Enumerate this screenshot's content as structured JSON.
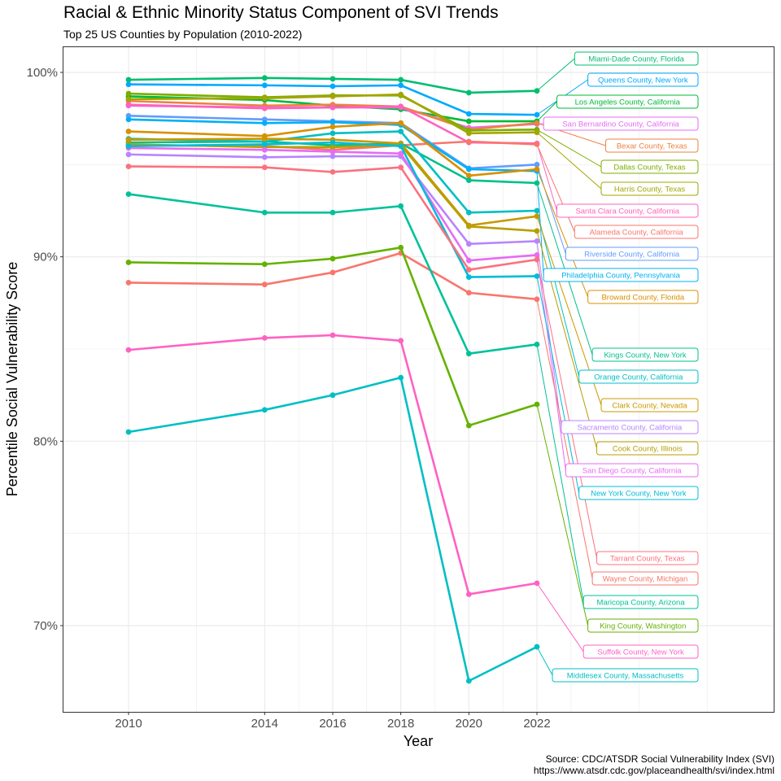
{
  "title": "Racial & Ethnic Minority Status Component of SVI Trends",
  "subtitle": "Top 25 US Counties by Population (2010-2022)",
  "caption": {
    "source": "Source: CDC/ATSDR Social Vulnerability Index (SVI)",
    "url": "https://www.atsdr.cdc.gov/placeandhealth/svi/index.html"
  },
  "chart_data": {
    "type": "line",
    "xlabel": "Year",
    "ylabel": "Percentile Social Vulnerability Score",
    "x": [
      2010,
      2014,
      2016,
      2018,
      2020,
      2022
    ],
    "xlim": [
      2010,
      2032
    ],
    "x_ticks": [
      2010,
      2014,
      2016,
      2018,
      2020,
      2022
    ],
    "x_tick_labels": [
      "2010",
      "2014",
      "2016",
      "2018",
      "2020",
      "2022"
    ],
    "ylim": [
      0.654,
      1.014
    ],
    "y_ticks": [
      0.7,
      0.8,
      0.9,
      1.0
    ],
    "y_tick_labels": [
      "70%",
      "80%",
      "90%",
      "100%"
    ],
    "grid": true,
    "legend": "none (direct labels at right)",
    "series": [
      {
        "name": "Miami-Dade County, Florida",
        "color": "#00BE70",
        "values": [
          0.996,
          0.997,
          0.9965,
          0.996,
          0.989,
          0.99
        ]
      },
      {
        "name": "Queens County, New York",
        "color": "#00A9FF",
        "values": [
          0.9935,
          0.993,
          0.9925,
          0.993,
          0.9775,
          0.977
        ]
      },
      {
        "name": "Los Angeles County, California",
        "color": "#00BA38",
        "values": [
          0.987,
          0.985,
          0.982,
          0.98,
          0.9735,
          0.9735
        ]
      },
      {
        "name": "San Bernardino County, California",
        "color": "#E76BF3",
        "values": [
          0.982,
          0.981,
          0.981,
          0.981,
          0.97,
          0.972
        ]
      },
      {
        "name": "Bexar County, Texas",
        "color": "#ED8141",
        "values": [
          0.9845,
          0.982,
          0.9825,
          0.9815,
          0.969,
          0.9725
        ]
      },
      {
        "name": "Dallas County, Texas",
        "color": "#7CAE00",
        "values": [
          0.9885,
          0.9865,
          0.9875,
          0.9875,
          0.9685,
          0.969
        ]
      },
      {
        "name": "Harris County, Texas",
        "color": "#A3A500",
        "values": [
          0.9855,
          0.986,
          0.987,
          0.988,
          0.967,
          0.9675
        ]
      },
      {
        "name": "Santa Clara County, California",
        "color": "#FF62BC",
        "values": [
          0.9825,
          0.9805,
          0.981,
          0.9815,
          0.962,
          0.9615
        ]
      },
      {
        "name": "Alameda County, California",
        "color": "#F8766D",
        "values": [
          0.9605,
          0.96,
          0.958,
          0.9605,
          0.9625,
          0.961
        ]
      },
      {
        "name": "Riverside County, California",
        "color": "#619CFF",
        "values": [
          0.9765,
          0.9745,
          0.9735,
          0.9725,
          0.948,
          0.95
        ]
      },
      {
        "name": "Philadelphia County, Pennsylvania",
        "color": "#00B0F6",
        "values": [
          0.9745,
          0.9725,
          0.973,
          0.9715,
          0.9475,
          0.9465
        ]
      },
      {
        "name": "Broward County, Florida",
        "color": "#D89000",
        "values": [
          0.968,
          0.9655,
          0.9705,
          0.9725,
          0.944,
          0.9475
        ]
      },
      {
        "name": "Kings County, New York",
        "color": "#00C08B",
        "values": [
          0.962,
          0.9625,
          0.9605,
          0.9615,
          0.9415,
          0.94
        ]
      },
      {
        "name": "Orange County, California",
        "color": "#00BFC4",
        "values": [
          0.964,
          0.9625,
          0.967,
          0.968,
          0.924,
          0.925
        ]
      },
      {
        "name": "Clark County, Nevada",
        "color": "#C99800",
        "values": [
          0.9635,
          0.964,
          0.9635,
          0.9615,
          0.917,
          0.922
        ]
      },
      {
        "name": "Sacramento County, California",
        "color": "#B983FF",
        "values": [
          0.9555,
          0.954,
          0.9545,
          0.9545,
          0.907,
          0.9085
        ]
      },
      {
        "name": "Cook County, Illinois",
        "color": "#B79F00",
        "values": [
          0.961,
          0.9595,
          0.9595,
          0.9605,
          0.9165,
          0.914
        ]
      },
      {
        "name": "San Diego County, California",
        "color": "#E76BF3",
        "values": [
          0.959,
          0.958,
          0.957,
          0.956,
          0.898,
          0.901
        ]
      },
      {
        "name": "New York County, New York",
        "color": "#00BCD8",
        "values": [
          0.96,
          0.961,
          0.962,
          0.96,
          0.889,
          0.8895
        ]
      },
      {
        "name": "Tarrant County, Texas",
        "color": "#FC717F",
        "values": [
          0.949,
          0.9485,
          0.946,
          0.9485,
          0.893,
          0.8985
        ]
      },
      {
        "name": "Wayne County, Michigan",
        "color": "#F8766D",
        "values": [
          0.886,
          0.885,
          0.8915,
          0.902,
          0.8805,
          0.877
        ]
      },
      {
        "name": "Maricopa County, Arizona",
        "color": "#00C19A",
        "values": [
          0.934,
          0.924,
          0.924,
          0.9275,
          0.8475,
          0.8525
        ]
      },
      {
        "name": "King County, Washington",
        "color": "#64B200",
        "values": [
          0.897,
          0.896,
          0.899,
          0.905,
          0.8085,
          0.82
        ]
      },
      {
        "name": "Suffolk County, New York",
        "color": "#FF61C3",
        "values": [
          0.8495,
          0.856,
          0.8575,
          0.8545,
          0.717,
          0.723
        ]
      },
      {
        "name": "Middlesex County, Massachusetts",
        "color": "#00BFC4",
        "values": [
          0.805,
          0.817,
          0.825,
          0.8345,
          0.67,
          0.6885
        ]
      }
    ],
    "label_order_top_to_bottom": [
      "Miami-Dade County, Florida",
      "Queens County, New York",
      "Los Angeles County, California",
      "San Bernardino County, California",
      "Bexar County, Texas",
      "Dallas County, Texas",
      "Harris County, Texas",
      "Santa Clara County, California",
      "Alameda County, California",
      "Riverside County, California",
      "Philadelphia County, Pennsylvania",
      "Broward County, Florida",
      "Kings County, New York",
      "Orange County, California",
      "Clark County, Nevada",
      "Sacramento County, California",
      "Cook County, Illinois",
      "San Diego County, California",
      "New York County, New York",
      "Tarrant County, Texas",
      "Wayne County, Michigan",
      "Maricopa County, Arizona",
      "King County, Washington",
      "Suffolk County, New York",
      "Middlesex County, Massachusetts"
    ]
  }
}
